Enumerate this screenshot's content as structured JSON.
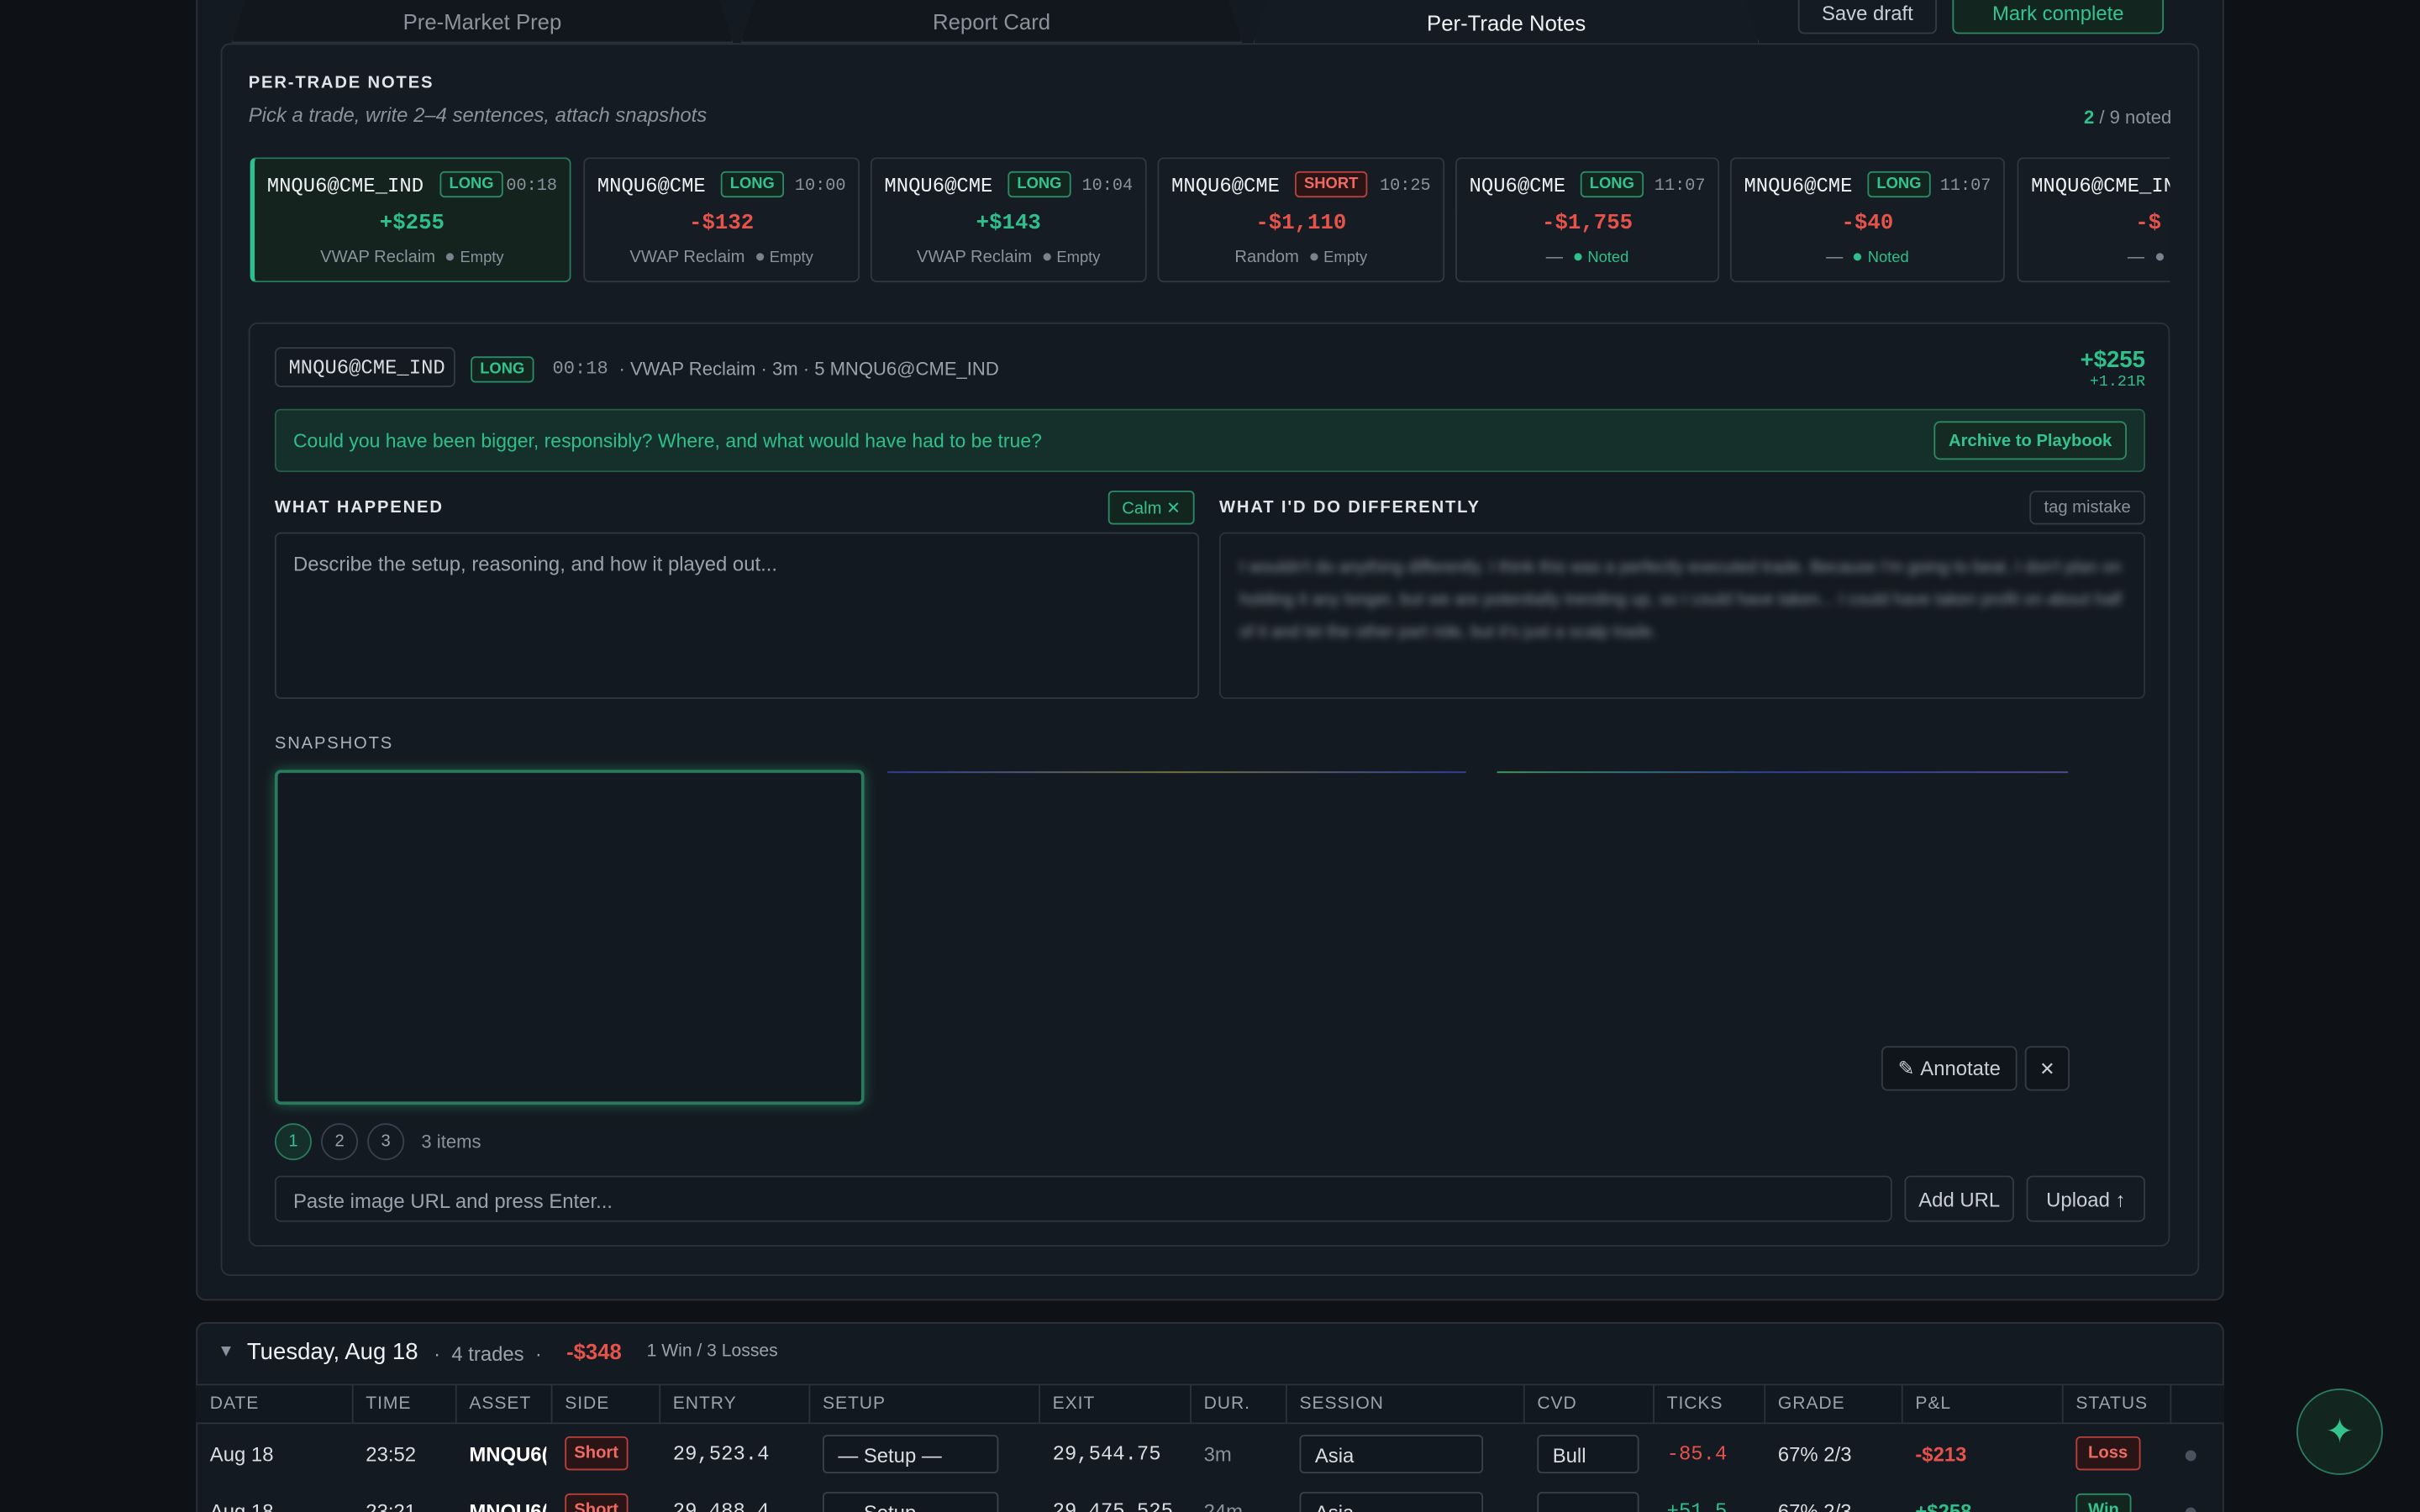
{
  "tabs": [
    "Pre-Market Prep",
    "Report Card",
    "Per-Trade Notes"
  ],
  "actions": {
    "save_draft": "Save draft",
    "mark_complete": "Mark complete"
  },
  "section": {
    "title": "PER-TRADE NOTES",
    "subtitle": "Pick a trade, write 2–4 sentences, attach snapshots",
    "noted_count": "2",
    "noted_total": "/ 9 noted"
  },
  "trades": [
    {
      "symbol": "MNQU6@CME_IND",
      "side": "LONG",
      "time": "00:18",
      "pnl": "+$255",
      "setup": "VWAP Reclaim",
      "status": "Empty"
    },
    {
      "symbol": "MNQU6@CME",
      "side": "LONG",
      "time": "10:00",
      "pnl": "-$132",
      "setup": "VWAP Reclaim",
      "status": "Empty"
    },
    {
      "symbol": "MNQU6@CME",
      "side": "LONG",
      "time": "10:04",
      "pnl": "+$143",
      "setup": "VWAP Reclaim",
      "status": "Empty"
    },
    {
      "symbol": "MNQU6@CME",
      "side": "SHORT",
      "time": "10:25",
      "pnl": "-$1,110",
      "setup": "Random",
      "status": "Empty"
    },
    {
      "symbol": "NQU6@CME",
      "side": "LONG",
      "time": "11:07",
      "pnl": "-$1,755",
      "setup": "—",
      "status": "Noted"
    },
    {
      "symbol": "MNQU6@CME",
      "side": "LONG",
      "time": "11:07",
      "pnl": "-$40",
      "setup": "—",
      "status": "Noted"
    },
    {
      "symbol": "MNQU6@CME_IN",
      "side": "",
      "time": "",
      "pnl": "-$",
      "setup": "—",
      "status": ""
    }
  ],
  "detail": {
    "symbol": "MNQU6@CME_IND",
    "side": "LONG",
    "time": "00:18",
    "meta": "· VWAP Reclaim · 3m · 5 MNQU6@CME_IND",
    "pnl": "+$255",
    "r": "+1.21R",
    "prompt": "Could you have been bigger, responsibly? Where, and what would have had to be true?",
    "archive": "Archive to Playbook",
    "what_happened": "WHAT HAPPENED",
    "emotion_tag": "Calm",
    "placeholder": "Describe the setup, reasoning, and how it played out...",
    "differently": "WHAT I'D DO DIFFERENTLY",
    "tag_mistake": "tag mistake",
    "differently_text": "I wouldn't do anything differently. I think this was a perfectly executed trade. Because I'm going to beat, I don't plan on holding it any longer, but we are potentially trending up, so I could have taken... I could have taken profit on about half of it and let the other part ride, but it's just a scalp trade.",
    "snapshots": "SNAPSHOTS",
    "pages": [
      "1",
      "2",
      "3"
    ],
    "items": "3 items",
    "annotate": "Annotate",
    "url_placeholder": "Paste image URL and press Enter...",
    "add_url": "Add URL",
    "upload": "Upload ↑"
  },
  "day": {
    "title": "Tuesday, Aug 18",
    "trades": "4 trades",
    "pnl": "-$348",
    "record": "1 Win / 3 Losses"
  },
  "table": {
    "headers": [
      "DATE",
      "TIME",
      "ASSET",
      "SIDE",
      "ENTRY",
      "SETUP",
      "EXIT",
      "DUR.",
      "SESSION",
      "CVD",
      "TICKS",
      "GRADE",
      "P&L",
      "STATUS"
    ],
    "rows": [
      [
        "Aug 18",
        "23:52",
        "MNQU6(",
        "Short",
        "29,523.4",
        "— Setup —",
        "29,544.75",
        "3m",
        "Asia",
        "Bull",
        "-85.4",
        "67%  2/3",
        "-$213",
        "Loss"
      ],
      [
        "Aug 18",
        "23:21",
        "MNQU6(",
        "Short",
        "29,488.4",
        "— Setup",
        "29,475.525",
        "24m",
        "Asia",
        "",
        "+51.5",
        "67%  2/3",
        "+$258",
        "Win"
      ]
    ]
  }
}
